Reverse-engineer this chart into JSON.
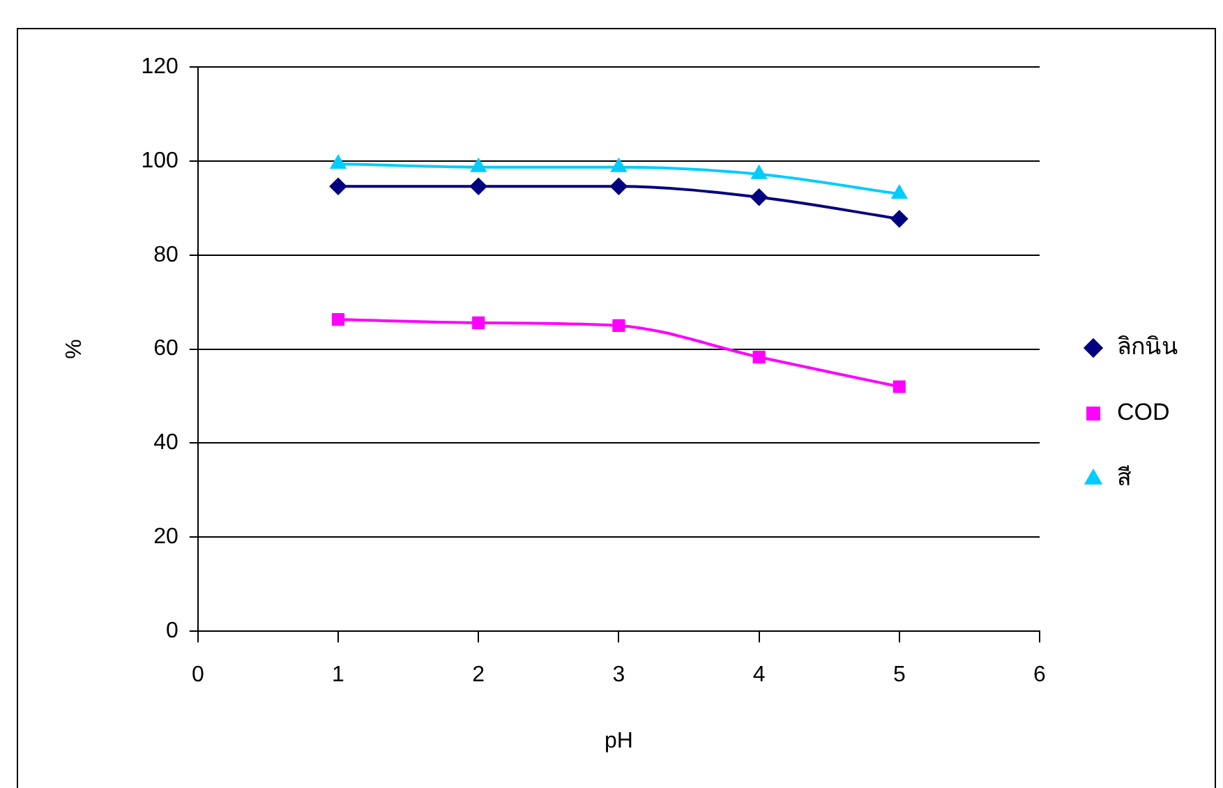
{
  "chart_data": {
    "type": "line",
    "xlabel": "pH",
    "ylabel": "%",
    "x": [
      1,
      2,
      3,
      4,
      5
    ],
    "series": [
      {
        "name": "ลิกนิน",
        "color": "#000080",
        "marker": "diamond",
        "values": [
          94.6,
          94.6,
          94.6,
          92.3,
          87.7
        ]
      },
      {
        "name": "COD",
        "color": "#ff00ff",
        "marker": "square",
        "values": [
          66.3,
          65.6,
          65.0,
          58.3,
          52.0
        ]
      },
      {
        "name": "สี",
        "color": "#00ccff",
        "marker": "triangle",
        "values": [
          99.4,
          98.7,
          98.7,
          97.2,
          93.0
        ]
      }
    ],
    "xlim": [
      0,
      6
    ],
    "xticks": [
      0,
      1,
      2,
      3,
      4,
      5,
      6
    ],
    "ylim": [
      0,
      120
    ],
    "yticks": [
      0,
      20,
      40,
      60,
      80,
      100,
      120
    ],
    "grid": "y",
    "legend": "right",
    "line_style": "solid"
  }
}
